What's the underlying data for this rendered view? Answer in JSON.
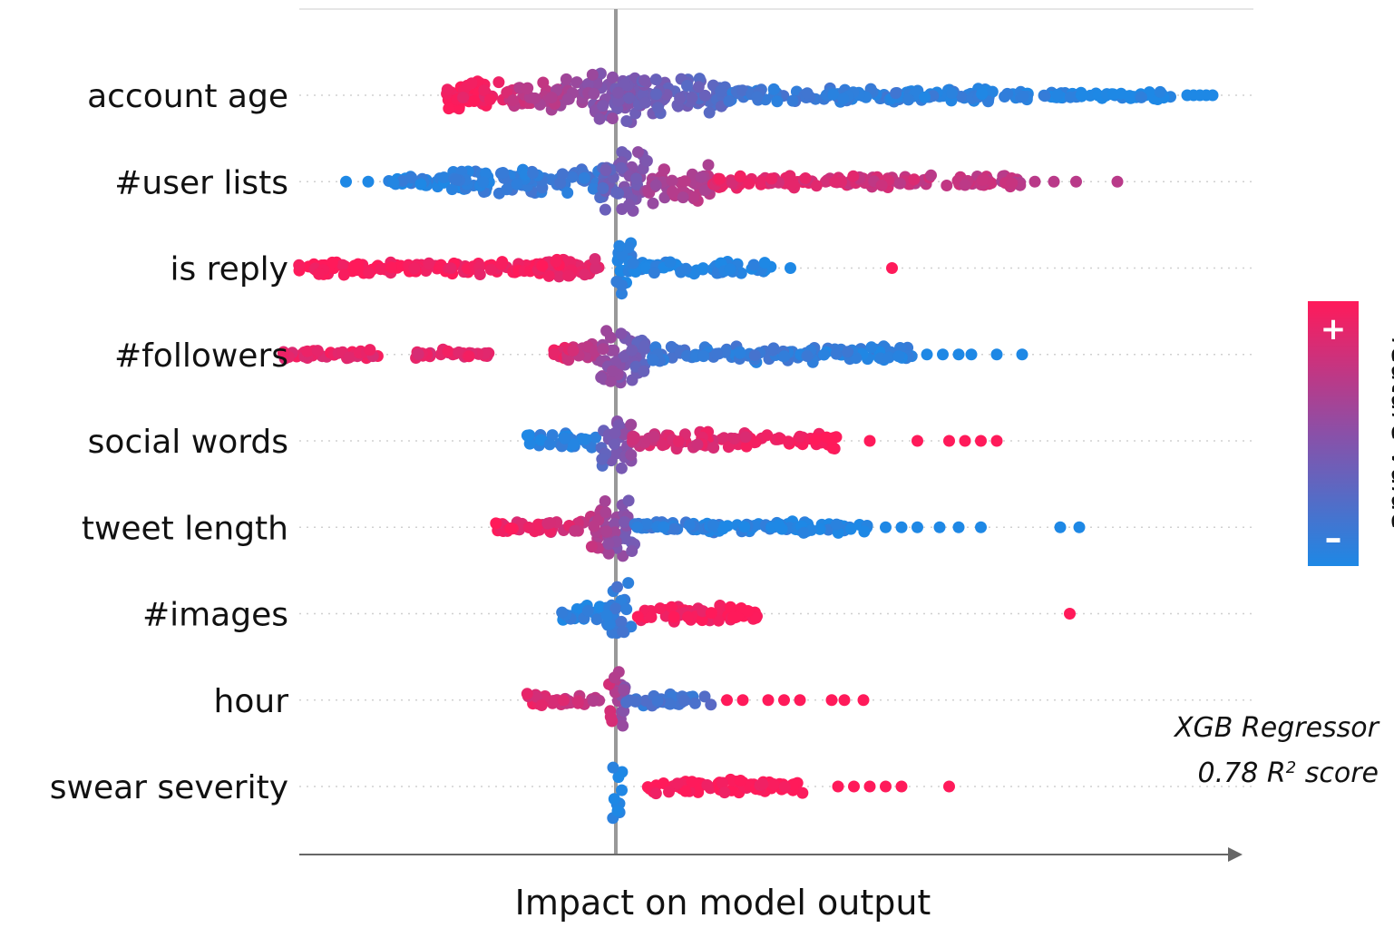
{
  "chart_data": {
    "type": "scatter",
    "title": "",
    "xlabel": "Impact on model output",
    "ylabel": "",
    "x_ticks": [],
    "xlim": [
      -1.0,
      2.0
    ],
    "features": [
      "account age",
      "#user lists",
      "is reply",
      "#followers",
      "social words",
      "tweet length",
      "#images",
      "hour",
      "swear severity"
    ],
    "series": [
      {
        "feature": "account age",
        "segments": [
          {
            "from": -0.55,
            "to": -0.35,
            "value_from": 1.0,
            "value_to": 0.9,
            "spread": 0.45
          },
          {
            "from": -0.35,
            "to": -0.1,
            "value_from": 0.8,
            "value_to": 0.55,
            "spread": 0.45
          },
          {
            "from": -0.1,
            "to": 0.08,
            "value_from": 0.55,
            "value_to": 0.4,
            "spread": 0.85
          },
          {
            "from": 0.08,
            "to": 0.35,
            "value_from": 0.4,
            "value_to": 0.25,
            "spread": 0.6
          },
          {
            "from": 0.35,
            "to": 1.2,
            "value_from": 0.15,
            "value_to": 0.05,
            "spread": 0.2
          },
          {
            "from": 1.2,
            "to": 1.75,
            "value_from": 0.05,
            "value_to": 0.0,
            "spread": 0.12
          }
        ],
        "points": [
          {
            "x": 1.8,
            "v": 0.0
          },
          {
            "x": 1.82,
            "v": 0.0
          },
          {
            "x": 1.84,
            "v": 0.0
          },
          {
            "x": 1.86,
            "v": 0.0
          },
          {
            "x": 1.88,
            "v": 0.0
          }
        ]
      },
      {
        "feature": "#user lists",
        "segments": [
          {
            "from": -0.72,
            "to": -0.55,
            "value_from": 0.05,
            "value_to": 0.05,
            "spread": 0.15
          },
          {
            "from": -0.55,
            "to": -0.05,
            "value_from": 0.05,
            "value_to": 0.15,
            "spread": 0.35
          },
          {
            "from": -0.05,
            "to": 0.1,
            "value_from": 0.3,
            "value_to": 0.5,
            "spread": 0.9
          },
          {
            "from": 0.1,
            "to": 0.3,
            "value_from": 0.6,
            "value_to": 0.7,
            "spread": 0.6
          },
          {
            "from": 0.3,
            "to": 1.3,
            "value_from": 0.9,
            "value_to": 0.7,
            "spread": 0.18
          }
        ],
        "points": [
          {
            "x": -0.85,
            "v": 0.0
          },
          {
            "x": -0.78,
            "v": 0.0
          },
          {
            "x": 1.32,
            "v": 0.7
          },
          {
            "x": 1.38,
            "v": 0.7
          },
          {
            "x": 1.45,
            "v": 0.7
          },
          {
            "x": 1.58,
            "v": 0.7
          }
        ]
      },
      {
        "feature": "is reply",
        "segments": [
          {
            "from": -1.0,
            "to": -0.08,
            "value_from": 1.0,
            "value_to": 0.95,
            "spread": 0.2
          },
          {
            "from": -0.25,
            "to": -0.05,
            "value_from": 0.95,
            "value_to": 0.9,
            "spread": 0.3
          },
          {
            "from": 0.0,
            "to": 0.05,
            "value_from": 0.05,
            "value_to": 0.05,
            "spread": 1.0
          },
          {
            "from": 0.05,
            "to": 0.5,
            "value_from": 0.05,
            "value_to": 0.0,
            "spread": 0.18
          }
        ],
        "points": [
          {
            "x": 0.55,
            "v": 0.0
          },
          {
            "x": 0.87,
            "v": 1.0
          }
        ]
      },
      {
        "feature": "#followers",
        "segments": [
          {
            "from": -1.05,
            "to": -0.75,
            "value_from": 0.9,
            "value_to": 0.9,
            "spread": 0.15
          },
          {
            "from": -0.63,
            "to": -0.4,
            "value_from": 0.9,
            "value_to": 0.9,
            "spread": 0.15
          },
          {
            "from": -0.2,
            "to": -0.05,
            "value_from": 0.95,
            "value_to": 0.6,
            "spread": 0.3
          },
          {
            "from": -0.05,
            "to": 0.1,
            "value_from": 0.6,
            "value_to": 0.3,
            "spread": 0.95
          },
          {
            "from": 0.1,
            "to": 0.95,
            "value_from": 0.15,
            "value_to": 0.05,
            "spread": 0.22
          }
        ],
        "points": [
          {
            "x": 0.98,
            "v": 0.0
          },
          {
            "x": 1.03,
            "v": 0.0
          },
          {
            "x": 1.08,
            "v": 0.0
          },
          {
            "x": 1.12,
            "v": 0.0
          },
          {
            "x": 1.2,
            "v": 0.0
          },
          {
            "x": 1.28,
            "v": 0.0
          }
        ]
      },
      {
        "feature": "social words",
        "segments": [
          {
            "from": -0.28,
            "to": -0.05,
            "value_from": 0.05,
            "value_to": 0.05,
            "spread": 0.2
          },
          {
            "from": -0.05,
            "to": 0.05,
            "value_from": 0.3,
            "value_to": 0.55,
            "spread": 0.95
          },
          {
            "from": 0.05,
            "to": 0.7,
            "value_from": 0.8,
            "value_to": 1.0,
            "spread": 0.25
          }
        ],
        "points": [
          {
            "x": 0.8,
            "v": 1.0
          },
          {
            "x": 0.95,
            "v": 1.0
          },
          {
            "x": 1.05,
            "v": 1.0
          },
          {
            "x": 1.1,
            "v": 1.0
          },
          {
            "x": 1.15,
            "v": 1.0
          },
          {
            "x": 1.2,
            "v": 1.0
          }
        ]
      },
      {
        "feature": "tweet length",
        "segments": [
          {
            "from": -0.38,
            "to": -0.1,
            "value_from": 0.95,
            "value_to": 0.8,
            "spread": 0.2
          },
          {
            "from": -0.08,
            "to": 0.06,
            "value_from": 0.7,
            "value_to": 0.4,
            "spread": 0.95
          },
          {
            "from": 0.06,
            "to": 0.8,
            "value_from": 0.1,
            "value_to": 0.0,
            "spread": 0.18
          }
        ],
        "points": [
          {
            "x": 0.85,
            "v": 0.0
          },
          {
            "x": 0.9,
            "v": 0.0
          },
          {
            "x": 0.95,
            "v": 0.0
          },
          {
            "x": 1.02,
            "v": 0.0
          },
          {
            "x": 1.08,
            "v": 0.0
          },
          {
            "x": 1.15,
            "v": 0.0
          },
          {
            "x": 1.4,
            "v": 0.0
          },
          {
            "x": 1.46,
            "v": 0.0
          }
        ]
      },
      {
        "feature": "#images",
        "segments": [
          {
            "from": -0.17,
            "to": 0.0,
            "value_from": 0.05,
            "value_to": 0.05,
            "spread": 0.25
          },
          {
            "from": -0.03,
            "to": 0.05,
            "value_from": 0.1,
            "value_to": 0.15,
            "spread": 0.95
          },
          {
            "from": 0.05,
            "to": 0.45,
            "value_from": 0.95,
            "value_to": 1.0,
            "spread": 0.25
          }
        ],
        "points": [
          {
            "x": 1.43,
            "v": 1.0
          }
        ]
      },
      {
        "feature": "hour",
        "segments": [
          {
            "from": -0.28,
            "to": -0.05,
            "value_from": 0.9,
            "value_to": 0.7,
            "spread": 0.18
          },
          {
            "from": -0.03,
            "to": 0.03,
            "value_from": 0.85,
            "value_to": 0.5,
            "spread": 0.95
          },
          {
            "from": 0.03,
            "to": 0.3,
            "value_from": 0.15,
            "value_to": 0.2,
            "spread": 0.2
          }
        ],
        "points": [
          {
            "x": 0.35,
            "v": 1.0
          },
          {
            "x": 0.4,
            "v": 1.0
          },
          {
            "x": 0.48,
            "v": 1.0
          },
          {
            "x": 0.53,
            "v": 1.0
          },
          {
            "x": 0.58,
            "v": 1.0
          },
          {
            "x": 0.68,
            "v": 1.0
          },
          {
            "x": 0.72,
            "v": 1.0
          },
          {
            "x": 0.78,
            "v": 1.0
          }
        ]
      },
      {
        "feature": "swear severity",
        "segments": [
          {
            "from": -0.01,
            "to": 0.02,
            "value_from": 0.0,
            "value_to": 0.0,
            "spread": 1.0
          },
          {
            "from": 0.08,
            "to": 0.6,
            "value_from": 1.0,
            "value_to": 1.0,
            "spread": 0.2
          }
        ],
        "points": [
          {
            "x": 0.7,
            "v": 1.0
          },
          {
            "x": 0.75,
            "v": 1.0
          },
          {
            "x": 0.8,
            "v": 1.0
          },
          {
            "x": 0.85,
            "v": 1.0
          },
          {
            "x": 0.9,
            "v": 1.0
          },
          {
            "x": 1.05,
            "v": 1.0
          }
        ]
      }
    ]
  },
  "legend": {
    "title": "feature value",
    "plus": "+",
    "minus": "–",
    "high_color": "#ff1a5a",
    "low_color": "#1e88e5"
  },
  "model_info": {
    "line1": "XGB Regressor",
    "line2_prefix": "0.78 R",
    "line2_sup": "2",
    "line2_suffix": " score"
  },
  "colors": {
    "high": "#ff1a5a",
    "mid": "#8a50a8",
    "low": "#1e88e5",
    "axis": "#666666",
    "zero_line": "#999999",
    "grid": "#d0d0d0"
  }
}
